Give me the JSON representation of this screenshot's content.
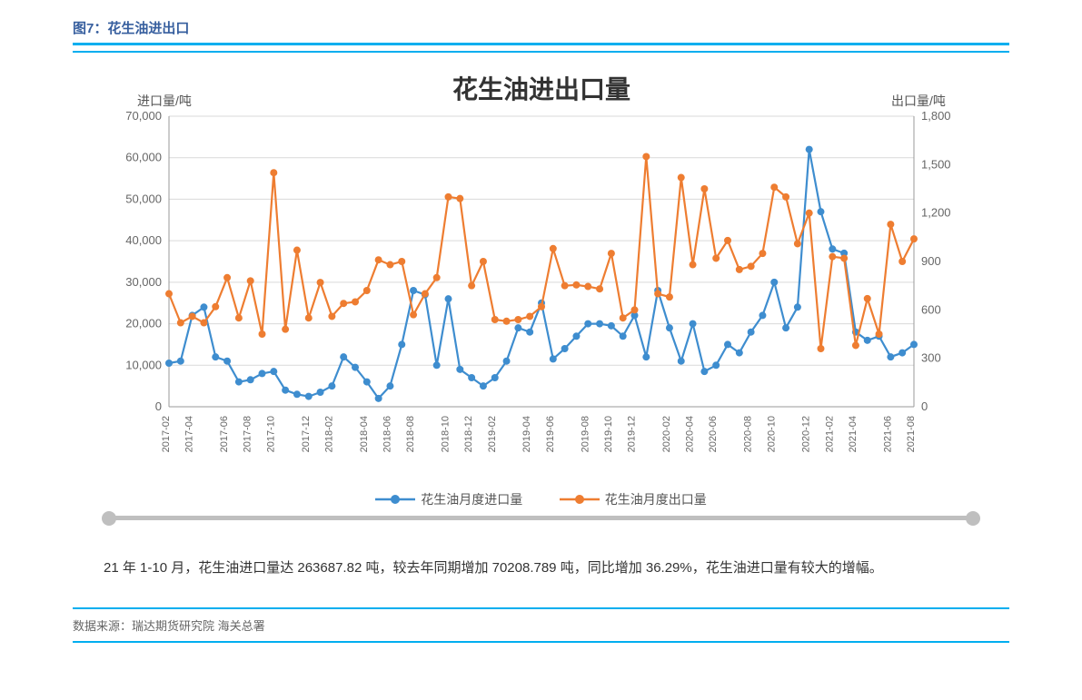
{
  "header": {
    "label": "图7：花生油进出口"
  },
  "chart": {
    "type": "dual-axis-line",
    "title": "花生油进出口量",
    "y_left_label": "进口量/吨",
    "y_right_label": "出口量/吨",
    "background_color": "#ffffff",
    "grid_color": "#d9d9d9",
    "axis_color": "#999999",
    "title_fontsize": 28,
    "label_fontsize": 14,
    "tick_fontsize": 13,
    "line_width": 2.2,
    "marker_radius": 4,
    "y_left": {
      "min": 0,
      "max": 70000,
      "step": 10000,
      "ticks": [
        "0",
        "10,000",
        "20,000",
        "30,000",
        "40,000",
        "50,000",
        "60,000",
        "70,000"
      ]
    },
    "y_right": {
      "min": 0,
      "max": 1800,
      "step": 300,
      "ticks": [
        "0",
        "300",
        "600",
        "900",
        "1,200",
        "1,500",
        "1,800"
      ]
    },
    "x_labels": [
      "2017-02",
      "2017-04",
      "2017-06",
      "2017-08",
      "2017-10",
      "2017-12",
      "2018-02",
      "2018-04",
      "2018-06",
      "2018-08",
      "2018-10",
      "2018-12",
      "2019-02",
      "2019-04",
      "2019-06",
      "2019-08",
      "2019-10",
      "2019-12",
      "2020-02",
      "2020-04",
      "2020-06",
      "2020-08",
      "2020-10",
      "2020-12",
      "2021-02",
      "2021-04",
      "2021-06",
      "2021-08"
    ],
    "series": [
      {
        "name": "花生油月度进口量",
        "color": "#3e8dcf",
        "axis": "left",
        "values": [
          10500,
          11000,
          22000,
          24000,
          12000,
          11000,
          6000,
          6500,
          8000,
          8500,
          4000,
          3000,
          2500,
          3500,
          5000,
          12000,
          9500,
          6000,
          2000,
          5000,
          15000,
          28000,
          27000,
          10000,
          26000,
          9000,
          7000,
          5000,
          7000,
          11000,
          19000,
          18000,
          25000,
          11500,
          14000,
          17000,
          20000,
          20000,
          19500,
          17000,
          22000,
          12000,
          28000,
          19000,
          11000,
          20000,
          8500,
          10000,
          15000,
          13000,
          18000,
          22000,
          30000,
          19000,
          24000,
          62000,
          47000,
          38000,
          37000,
          18000,
          16000,
          17000,
          12000,
          13000,
          15000
        ]
      },
      {
        "name": "花生油月度出口量",
        "color": "#ee7d31",
        "axis": "right",
        "values": [
          700,
          520,
          560,
          520,
          620,
          800,
          550,
          780,
          450,
          1450,
          480,
          970,
          550,
          770,
          560,
          640,
          650,
          720,
          910,
          880,
          900,
          570,
          700,
          800,
          1300,
          1290,
          750,
          900,
          540,
          530,
          540,
          560,
          620,
          980,
          750,
          755,
          745,
          730,
          950,
          550,
          600,
          1550,
          700,
          680,
          1420,
          880,
          1350,
          920,
          1030,
          850,
          870,
          950,
          1360,
          1300,
          1010,
          1200,
          360,
          930,
          920,
          380,
          670,
          450,
          1130,
          900,
          1040
        ]
      }
    ],
    "legend": {
      "items": [
        "花生油月度进口量",
        "花生油月度出口量"
      ],
      "marker_label_0": "花生油月度进口量",
      "marker_label_1": "花生油月度出口量"
    }
  },
  "caption": {
    "text": "21 年 1-10 月，花生油进口量达 263687.82 吨，较去年同期增加 70208.789 吨，同比增加 36.29%，花生油进口量有较大的增幅。"
  },
  "source": {
    "label": "数据来源：瑞达期货研究院  海关总署"
  }
}
